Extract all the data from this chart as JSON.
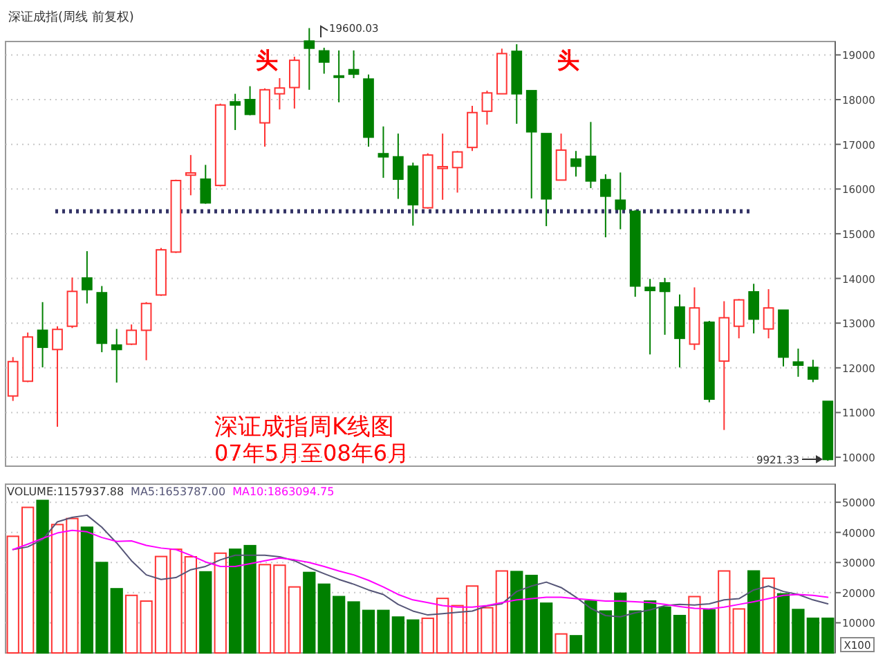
{
  "chart_data": [
    {
      "type": "candlestick",
      "title": "深证成指周K线图",
      "subtitle": "07年5月至08年6月",
      "annotations": [
        "深证成指(周线 前复权)",
        "头",
        "头",
        "19600.03",
        "9921.33"
      ],
      "categories": [
        null,
        null,
        null,
        null,
        null,
        null,
        null,
        null,
        null,
        null,
        null,
        null,
        null,
        null,
        null,
        null,
        null,
        null,
        null,
        null,
        null,
        null,
        null,
        null,
        null,
        null,
        null,
        null,
        null,
        null,
        null,
        null,
        null,
        null,
        null,
        null,
        null,
        null,
        null,
        null,
        null,
        null,
        null,
        null,
        null,
        null,
        null,
        null,
        null,
        null,
        null,
        null,
        null,
        null,
        null,
        null
      ],
      "ohlc": [
        [
          11370,
          12240,
          11260,
          12140
        ],
        [
          11700,
          12790,
          11680,
          12690
        ],
        [
          12840,
          13470,
          12010,
          12460
        ],
        [
          12410,
          12930,
          10680,
          12860
        ],
        [
          12930,
          14020,
          12890,
          13710
        ],
        [
          14010,
          14610,
          13440,
          13750
        ],
        [
          13680,
          13830,
          12350,
          12550
        ],
        [
          12510,
          12870,
          11670,
          12410
        ],
        [
          12530,
          12970,
          12510,
          12840
        ],
        [
          12840,
          13470,
          12170,
          13440
        ],
        [
          13630,
          14680,
          13610,
          14640
        ],
        [
          14590,
          16210,
          14570,
          16190
        ],
        [
          16310,
          16760,
          15860,
          16360
        ],
        [
          16220,
          16540,
          15670,
          15690
        ],
        [
          16080,
          17910,
          16060,
          17880
        ],
        [
          17950,
          18130,
          17320,
          17880
        ],
        [
          18000,
          18300,
          17650,
          17670
        ],
        [
          17480,
          18250,
          16950,
          18220
        ],
        [
          18130,
          18480,
          17780,
          18260
        ],
        [
          18270,
          18960,
          17800,
          18880
        ],
        [
          19310,
          19600.03,
          18220,
          19150
        ],
        [
          19090,
          19160,
          18580,
          18840
        ],
        [
          18530,
          19100,
          17940,
          18500
        ],
        [
          18670,
          19100,
          18480,
          18570
        ],
        [
          18460,
          18560,
          16950,
          17160
        ],
        [
          16790,
          17400,
          16250,
          16720
        ],
        [
          16720,
          17240,
          15780,
          16220
        ],
        [
          16510,
          16590,
          15180,
          15650
        ],
        [
          15580,
          16800,
          15560,
          16760
        ],
        [
          16460,
          17240,
          15760,
          16500
        ],
        [
          16480,
          16850,
          15920,
          16830
        ],
        [
          16930,
          17860,
          16850,
          17710
        ],
        [
          17740,
          18200,
          17440,
          18150
        ],
        [
          18130,
          19140,
          18130,
          19030
        ],
        [
          19080,
          19240,
          17460,
          18130
        ],
        [
          18200,
          18200,
          15790,
          17280
        ],
        [
          17240,
          17240,
          15170,
          15780
        ],
        [
          16200,
          17240,
          16200,
          16870
        ],
        [
          16670,
          16850,
          16280,
          16510
        ],
        [
          16730,
          17500,
          16020,
          16180
        ],
        [
          16210,
          16330,
          14920,
          15840
        ],
        [
          15750,
          16370,
          15100,
          15550
        ],
        [
          15500,
          15530,
          13590,
          13830
        ],
        [
          13800,
          13990,
          12300,
          13730
        ],
        [
          13900,
          14010,
          12740,
          13710
        ],
        [
          13360,
          13640,
          12010,
          12660
        ],
        [
          12530,
          13800,
          12400,
          13340
        ],
        [
          13020,
          13050,
          11230,
          11300
        ],
        [
          12150,
          13490,
          10610,
          13120
        ],
        [
          12930,
          13540,
          12660,
          13520
        ],
        [
          13700,
          13880,
          12770,
          13090
        ],
        [
          12870,
          13760,
          12660,
          13340
        ],
        [
          13290,
          13290,
          12030,
          12240
        ],
        [
          12130,
          12430,
          11800,
          12060
        ],
        [
          12010,
          12180,
          11680,
          11750
        ],
        [
          11250,
          11250,
          9921.33,
          9950
        ]
      ],
      "colors": [
        "#ff3333",
        "#ff3333",
        "#008000",
        "#ff3333",
        "#ff3333",
        "#008000",
        "#008000",
        "#008000",
        "#ff3333",
        "#ff3333",
        "#ff3333",
        "#ff3333",
        "#ff3333",
        "#008000",
        "#ff3333",
        "#008000",
        "#008000",
        "#ff3333",
        "#ff3333",
        "#ff3333",
        "#008000",
        "#008000",
        "#008000",
        "#008000",
        "#008000",
        "#008000",
        "#008000",
        "#008000",
        "#ff3333",
        "#ff3333",
        "#ff3333",
        "#ff3333",
        "#ff3333",
        "#ff3333",
        "#008000",
        "#008000",
        "#008000",
        "#ff3333",
        "#008000",
        "#008000",
        "#008000",
        "#008000",
        "#008000",
        "#008000",
        "#008000",
        "#008000",
        "#ff3333",
        "#008000",
        "#ff3333",
        "#ff3333",
        "#008000",
        "#ff3333",
        "#008000",
        "#008000",
        "#008000",
        "#008000"
      ],
      "ylim": [
        9800,
        19300
      ],
      "yticks": [
        10000,
        11000,
        12000,
        13000,
        14000,
        15000,
        16000,
        17000,
        18000,
        19000
      ],
      "grid": "y",
      "tick_labels": "y",
      "ref_lines": [
        {
          "axis": "y",
          "value": 15500,
          "color": "#333366",
          "line_style": "dotted"
        }
      ]
    },
    {
      "type": "bar",
      "annotations": [
        "X100"
      ],
      "categories": [
        null,
        null,
        null,
        null,
        null,
        null,
        null,
        null,
        null,
        null,
        null,
        null,
        null,
        null,
        null,
        null,
        null,
        null,
        null,
        null,
        null,
        null,
        null,
        null,
        null,
        null,
        null,
        null,
        null,
        null,
        null,
        null,
        null,
        null,
        null,
        null,
        null,
        null,
        null,
        null,
        null,
        null,
        null,
        null,
        null,
        null,
        null,
        null,
        null,
        null,
        null,
        null,
        null,
        null,
        null,
        null
      ],
      "series": [
        {
          "name": "VOLUME:1157937.88",
          "color": "#333333",
          "colors": [
            "#ff3333",
            "#ff3333",
            "#008000",
            "#ff3333",
            "#ff3333",
            "#008000",
            "#008000",
            "#008000",
            "#ff3333",
            "#ff3333",
            "#ff3333",
            "#ff3333",
            "#ff3333",
            "#008000",
            "#ff3333",
            "#008000",
            "#008000",
            "#ff3333",
            "#ff3333",
            "#ff3333",
            "#008000",
            "#008000",
            "#008000",
            "#008000",
            "#008000",
            "#008000",
            "#008000",
            "#008000",
            "#ff3333",
            "#ff3333",
            "#ff3333",
            "#ff3333",
            "#ff3333",
            "#ff3333",
            "#008000",
            "#008000",
            "#008000",
            "#ff3333",
            "#008000",
            "#008000",
            "#008000",
            "#008000",
            "#008000",
            "#008000",
            "#008000",
            "#008000",
            "#ff3333",
            "#008000",
            "#ff3333",
            "#ff3333",
            "#008000",
            "#ff3333",
            "#008000",
            "#008000",
            "#008000",
            "#008000"
          ],
          "values": [
            38700,
            48300,
            50600,
            42600,
            44600,
            41700,
            30000,
            21300,
            19100,
            17200,
            32000,
            34400,
            31900,
            26900,
            33100,
            34400,
            35600,
            29300,
            29100,
            21900,
            26700,
            22800,
            18700,
            16900,
            14100,
            14100,
            11900,
            10900,
            11500,
            18100,
            15700,
            22200,
            15000,
            27200,
            27000,
            25700,
            16500,
            6300,
            5700,
            17200,
            13900,
            19800,
            13900,
            17200,
            15200,
            12400,
            18700,
            14300,
            27200,
            14600,
            27200,
            24800,
            19600,
            14400,
            11500,
            11500
          ]
        },
        {
          "name": "MA5:1653787.00",
          "type": "line",
          "color": "#555577",
          "values": [
            34300,
            35200,
            37600,
            43500,
            45000,
            45700,
            41700,
            36500,
            30600,
            25900,
            24400,
            25000,
            27600,
            28700,
            30900,
            32400,
            32400,
            32400,
            31900,
            30600,
            28300,
            26300,
            24400,
            22800,
            20900,
            19400,
            16100,
            13900,
            12600,
            13000,
            13500,
            13900,
            15600,
            16300,
            20400,
            22200,
            23500,
            21700,
            18500,
            14800,
            12400,
            12000,
            13300,
            14300,
            15700,
            16100,
            15900,
            16300,
            17600,
            18000,
            20900,
            22200,
            20400,
            19400,
            17600,
            16300
          ]
        },
        {
          "name": "MA10:1863094.75",
          "type": "line",
          "color": "#ff00ff",
          "values": [
            34300,
            36100,
            38000,
            39800,
            40700,
            40200,
            38300,
            37000,
            37200,
            35700,
            34800,
            34300,
            32400,
            30200,
            28700,
            28700,
            29600,
            30600,
            31500,
            30900,
            30000,
            28700,
            27200,
            25900,
            24100,
            21900,
            19400,
            17600,
            16700,
            15700,
            15200,
            15200,
            15700,
            16700,
            17600,
            18000,
            18500,
            18500,
            18000,
            17600,
            17200,
            17200,
            17000,
            16700,
            16100,
            15400,
            14800,
            14600,
            15200,
            16100,
            17000,
            18000,
            19100,
            19400,
            19100,
            18500
          ]
        }
      ],
      "ylim": [
        0,
        56000
      ],
      "yticks": [
        10000,
        20000,
        30000,
        40000,
        50000
      ],
      "grid": "y",
      "tick_labels": "y",
      "legend": "top left"
    }
  ]
}
